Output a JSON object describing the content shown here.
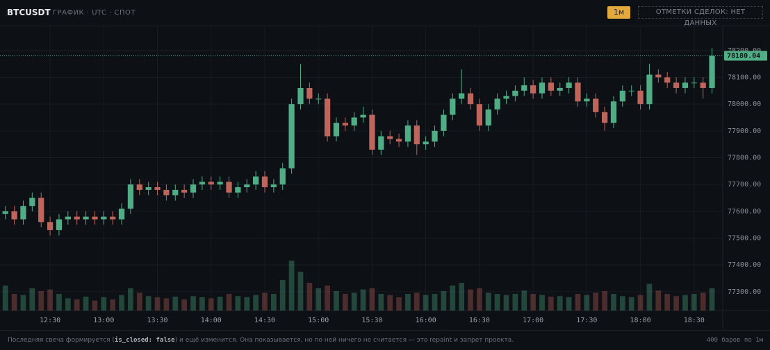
{
  "header": {
    "symbol": "BTCUSDT",
    "subtitle": "ГРАФИК · UTC · СПОТ",
    "interval": "1м",
    "trade_marks": "ОТМЕТКИ СДЕЛОК: НЕТ ДАННЫХ"
  },
  "footer": {
    "note_start": "Последняя свеча формируется (",
    "note_code": "is_closed: false",
    "note_end": ") и ещё изменится. Она показывается, но по ней ничего не считается — это repaint и запрет проекта.",
    "bars": "400 баров по 1м"
  },
  "chart_data": {
    "type": "candlestick",
    "up_color": "#4fae86",
    "down_color": "#c0655c",
    "grid": true,
    "xlim": [
      "12:02",
      "18:46"
    ],
    "xticks": [
      "12:30",
      "13:00",
      "13:30",
      "14:00",
      "14:30",
      "15:00",
      "15:30",
      "16:00",
      "16:30",
      "17:00",
      "17:30",
      "18:00",
      "18:30"
    ],
    "ylim": [
      77230,
      78290
    ],
    "yticks": [
      {
        "value": 77300,
        "label": "77300.00"
      },
      {
        "value": 77400,
        "label": "77400.00"
      },
      {
        "value": 77500,
        "label": "77500.00"
      },
      {
        "value": 77600,
        "label": "77600.00"
      },
      {
        "value": 77700,
        "label": "77700.00"
      },
      {
        "value": 77800,
        "label": "77800.00"
      },
      {
        "value": 77900,
        "label": "77900.00"
      },
      {
        "value": 78000,
        "label": "78000.00"
      },
      {
        "value": 78100,
        "label": "78100.00"
      },
      {
        "value": 78200,
        "label": "78200.00"
      }
    ],
    "x": [
      "12:05",
      "12:10",
      "12:15",
      "12:20",
      "12:25",
      "12:30",
      "12:35",
      "12:40",
      "12:45",
      "12:50",
      "12:55",
      "13:00",
      "13:05",
      "13:10",
      "13:15",
      "13:20",
      "13:25",
      "13:30",
      "13:35",
      "13:40",
      "13:45",
      "13:50",
      "13:55",
      "14:00",
      "14:05",
      "14:10",
      "14:15",
      "14:20",
      "14:25",
      "14:30",
      "14:35",
      "14:40",
      "14:45",
      "14:50",
      "14:55",
      "15:00",
      "15:05",
      "15:10",
      "15:15",
      "15:20",
      "15:25",
      "15:30",
      "15:35",
      "15:40",
      "15:45",
      "15:50",
      "15:55",
      "16:00",
      "16:05",
      "16:10",
      "16:15",
      "16:20",
      "16:25",
      "16:30",
      "16:35",
      "16:40",
      "16:45",
      "16:50",
      "16:55",
      "17:00",
      "17:05",
      "17:10",
      "17:15",
      "17:20",
      "17:25",
      "17:30",
      "17:35",
      "17:40",
      "17:45",
      "17:50",
      "17:55",
      "18:00",
      "18:05",
      "18:10",
      "18:15",
      "18:20",
      "18:25",
      "18:30",
      "18:35",
      "18:40"
    ],
    "open": [
      77590,
      77600,
      77570,
      77620,
      77650,
      77560,
      77530,
      77570,
      77580,
      77570,
      77580,
      77570,
      77580,
      77570,
      77610,
      77700,
      77680,
      77690,
      77680,
      77660,
      77680,
      77670,
      77700,
      77710,
      77700,
      77710,
      77670,
      77690,
      77700,
      77730,
      77690,
      77700,
      77760,
      78000,
      78060,
      78020,
      78020,
      77880,
      77930,
      77920,
      77950,
      77960,
      77830,
      77880,
      77870,
      77860,
      77920,
      77850,
      77860,
      77900,
      77960,
      78020,
      78040,
      78000,
      77920,
      77980,
      78020,
      78030,
      78050,
      78070,
      78040,
      78080,
      78050,
      78060,
      78080,
      78010,
      78020,
      77970,
      77930,
      78010,
      78050,
      78050,
      78000,
      78110,
      78100,
      78080,
      78060,
      78080,
      78080,
      78060
    ],
    "high": [
      77620,
      77620,
      77640,
      77670,
      77670,
      77580,
      77590,
      77600,
      77600,
      77600,
      77600,
      77600,
      77600,
      77630,
      77720,
      77720,
      77710,
      77710,
      77700,
      77700,
      77700,
      77720,
      77730,
      77730,
      77730,
      77730,
      77710,
      77720,
      77750,
      77750,
      77720,
      77780,
      78020,
      78150,
      78080,
      78040,
      78040,
      77950,
      77950,
      77970,
      77990,
      77980,
      77900,
      77900,
      77890,
      77940,
      77940,
      77880,
      77920,
      77980,
      78040,
      78130,
      78060,
      78020,
      78000,
      78040,
      78050,
      78070,
      78100,
      78090,
      78100,
      78100,
      78080,
      78100,
      78100,
      78040,
      78040,
      77990,
      78030,
      78070,
      78070,
      78070,
      78150,
      78130,
      78120,
      78100,
      78100,
      78100,
      78100,
      78210
    ],
    "low": [
      77570,
      77550,
      77550,
      77600,
      77540,
      77510,
      77510,
      77550,
      77550,
      77550,
      77550,
      77550,
      77550,
      77550,
      77590,
      77660,
      77660,
      77660,
      77640,
      77640,
      77650,
      77650,
      77680,
      77680,
      77680,
      77650,
      77650,
      77670,
      77680,
      77670,
      77670,
      77680,
      77740,
      77980,
      78000,
      78000,
      77860,
      77860,
      77900,
      77900,
      77930,
      77810,
      77810,
      77850,
      77840,
      77840,
      77810,
      77830,
      77840,
      77880,
      77940,
      78000,
      77980,
      77900,
      77900,
      77960,
      78000,
      78010,
      78030,
      78020,
      78020,
      78030,
      78030,
      78040,
      77990,
      77990,
      77950,
      77900,
      77910,
      77990,
      78030,
      77980,
      77980,
      78080,
      78060,
      78040,
      78040,
      78060,
      78020,
      78040
    ],
    "close": [
      77600,
      77570,
      77620,
      77650,
      77560,
      77530,
      77570,
      77580,
      77570,
      77580,
      77570,
      77580,
      77570,
      77610,
      77700,
      77680,
      77690,
      77680,
      77660,
      77680,
      77670,
      77700,
      77710,
      77700,
      77710,
      77670,
      77690,
      77700,
      77730,
      77690,
      77700,
      77760,
      78000,
      78060,
      78020,
      78020,
      77880,
      77930,
      77920,
      77950,
      77960,
      77830,
      77880,
      77870,
      77860,
      77920,
      77850,
      77860,
      77900,
      77960,
      78020,
      78040,
      78000,
      77920,
      77980,
      78020,
      78030,
      78050,
      78070,
      78040,
      78080,
      78050,
      78060,
      78080,
      78010,
      78020,
      77970,
      77930,
      78010,
      78050,
      78050,
      78000,
      78110,
      78100,
      78080,
      78060,
      78080,
      78080,
      78060,
      78180.04
    ],
    "volume": [
      45,
      30,
      28,
      40,
      35,
      38,
      30,
      22,
      20,
      25,
      18,
      24,
      20,
      28,
      40,
      32,
      26,
      24,
      22,
      25,
      20,
      26,
      24,
      22,
      25,
      30,
      26,
      24,
      28,
      32,
      30,
      55,
      90,
      70,
      50,
      40,
      45,
      35,
      30,
      32,
      38,
      40,
      30,
      28,
      24,
      30,
      32,
      28,
      30,
      35,
      45,
      50,
      38,
      40,
      32,
      30,
      28,
      30,
      36,
      30,
      28,
      25,
      26,
      24,
      30,
      28,
      32,
      35,
      30,
      26,
      24,
      28,
      48,
      36,
      30,
      26,
      28,
      30,
      32,
      40
    ]
  }
}
